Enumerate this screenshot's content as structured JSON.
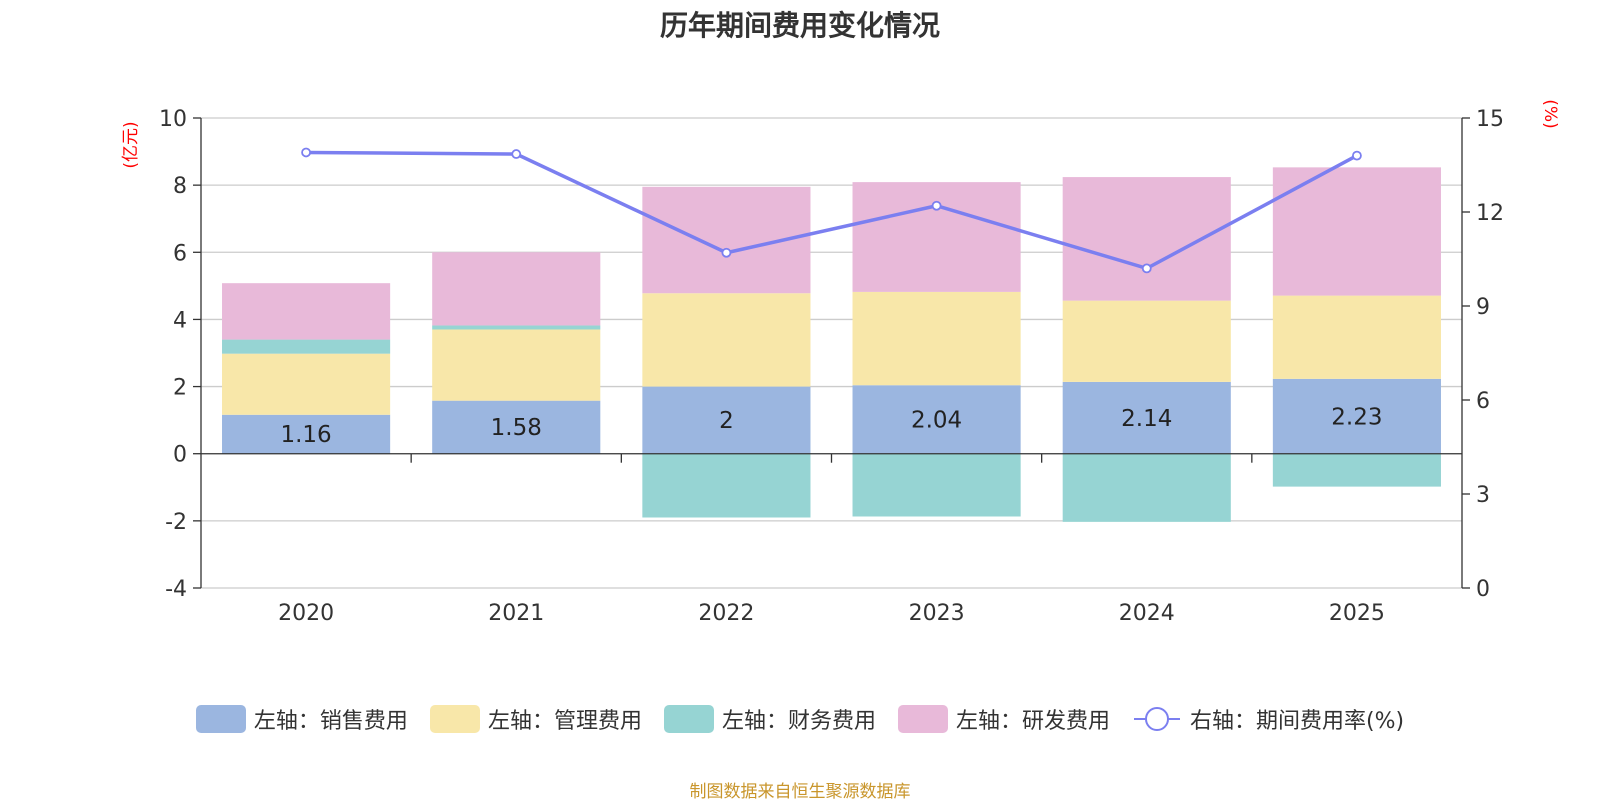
{
  "chart_data": {
    "type": "bar",
    "title": "历年期间费用变化情况",
    "categories": [
      "2020",
      "2021",
      "2022",
      "2023",
      "2024",
      "2025"
    ],
    "series": [
      {
        "name": "左轴：销售费用",
        "axis": "left",
        "type": "bar",
        "stack": "expense",
        "color": "#9bb6e0",
        "values": [
          1.16,
          1.58,
          2,
          2.04,
          2.14,
          2.23
        ],
        "show_labels": true
      },
      {
        "name": "左轴：管理费用",
        "axis": "left",
        "type": "bar",
        "stack": "expense",
        "color": "#f8e7a9",
        "values": [
          1.82,
          2.12,
          2.78,
          2.78,
          2.42,
          2.48
        ]
      },
      {
        "name": "左轴：财务费用",
        "axis": "left",
        "type": "bar",
        "stack": "expense",
        "color": "#96d4d3",
        "values": [
          0.42,
          0.12,
          -1.9,
          -1.87,
          -2.03,
          -0.98
        ]
      },
      {
        "name": "左轴：研发费用",
        "axis": "left",
        "type": "bar",
        "stack": "expense",
        "color": "#e8b9d9",
        "values": [
          1.68,
          2.18,
          3.17,
          3.27,
          3.68,
          3.82
        ]
      },
      {
        "name": "右轴：期间费用率(%)",
        "axis": "right",
        "type": "line",
        "color": "#7b7ff0",
        "values": [
          13.9,
          13.85,
          10.7,
          12.2,
          10.2,
          13.8
        ]
      }
    ],
    "left_axis": {
      "unit": "(亿元)",
      "ylim": [
        -4,
        10
      ],
      "ticks": [
        -4,
        -2,
        0,
        2,
        4,
        6,
        8,
        10
      ]
    },
    "right_axis": {
      "unit": "(%)",
      "ylim": [
        0,
        15
      ],
      "ticks": [
        0,
        3,
        6,
        9,
        12,
        15
      ]
    },
    "grid": true,
    "legend_position": "bottom",
    "unit_color": "#ff0000"
  },
  "source_text": "制图数据来自恒生聚源数据库"
}
